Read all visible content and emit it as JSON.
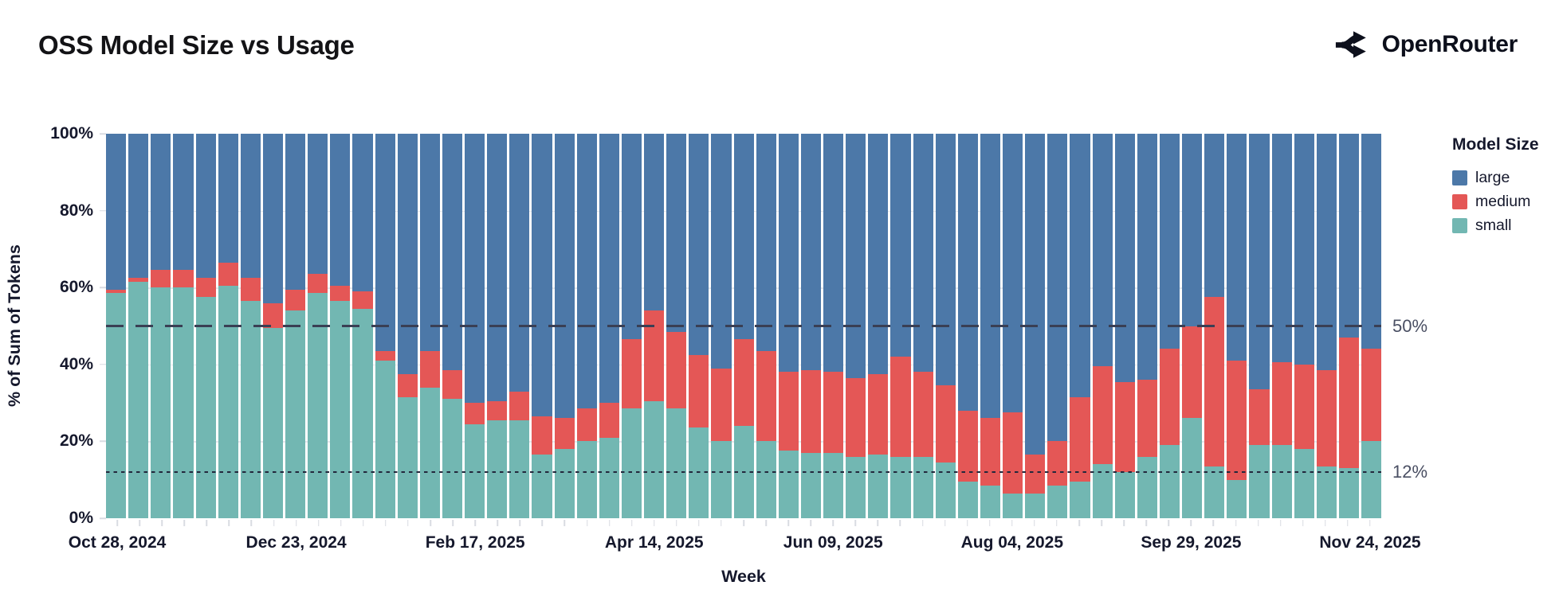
{
  "header": {
    "title": "OSS Model Size vs Usage",
    "brand": "OpenRouter"
  },
  "legend": {
    "title": "Model Size",
    "items": [
      {
        "label": "large",
        "color": "#4c78a8"
      },
      {
        "label": "medium",
        "color": "#e45756"
      },
      {
        "label": "small",
        "color": "#72b7b2"
      }
    ]
  },
  "chart_data": {
    "type": "bar",
    "stacked": true,
    "title": "OSS Model Size vs Usage",
    "xlabel": "Week",
    "ylabel": "% of Sum of Tokens",
    "ylim": [
      0,
      100
    ],
    "grid": "horizontal",
    "grid_y": [
      20,
      40,
      60,
      80
    ],
    "legend_position": "right",
    "y_ticks": [
      {
        "value": 0,
        "label": "0%"
      },
      {
        "value": 20,
        "label": "20%"
      },
      {
        "value": 40,
        "label": "40%"
      },
      {
        "value": 60,
        "label": "60%"
      },
      {
        "value": 80,
        "label": "80%"
      },
      {
        "value": 100,
        "label": "100%"
      }
    ],
    "ref_lines": [
      {
        "value": 50,
        "label": "50%",
        "style": "dashed"
      },
      {
        "value": 12,
        "label": "12%",
        "style": "dotted"
      }
    ],
    "x_major_tick_indices": [
      0,
      8,
      16,
      24,
      32,
      40,
      48,
      56
    ],
    "x": [
      "Oct 28, 2024",
      "Nov 04, 2024",
      "Nov 11, 2024",
      "Nov 18, 2024",
      "Nov 25, 2024",
      "Dec 02, 2024",
      "Dec 09, 2024",
      "Dec 16, 2024",
      "Dec 23, 2024",
      "Dec 30, 2024",
      "Jan 06, 2025",
      "Jan 13, 2025",
      "Jan 20, 2025",
      "Jan 27, 2025",
      "Feb 03, 2025",
      "Feb 10, 2025",
      "Feb 17, 2025",
      "Feb 24, 2025",
      "Mar 03, 2025",
      "Mar 10, 2025",
      "Mar 17, 2025",
      "Mar 24, 2025",
      "Mar 31, 2025",
      "Apr 07, 2025",
      "Apr 14, 2025",
      "Apr 21, 2025",
      "Apr 28, 2025",
      "May 05, 2025",
      "May 12, 2025",
      "May 19, 2025",
      "May 26, 2025",
      "Jun 02, 2025",
      "Jun 09, 2025",
      "Jun 16, 2025",
      "Jun 23, 2025",
      "Jun 30, 2025",
      "Jul 07, 2025",
      "Jul 14, 2025",
      "Jul 21, 2025",
      "Jul 28, 2025",
      "Aug 04, 2025",
      "Aug 11, 2025",
      "Aug 18, 2025",
      "Aug 25, 2025",
      "Sep 01, 2025",
      "Sep 08, 2025",
      "Sep 15, 2025",
      "Sep 22, 2025",
      "Sep 29, 2025",
      "Oct 06, 2025",
      "Oct 13, 2025",
      "Oct 20, 2025",
      "Oct 27, 2025",
      "Nov 03, 2025",
      "Nov 10, 2025",
      "Nov 17, 2025",
      "Nov 24, 2025"
    ],
    "series": [
      {
        "name": "large",
        "color": "#4c78a8",
        "values": [
          40.5,
          37.5,
          35.5,
          35.5,
          37.5,
          33.5,
          37.5,
          44.0,
          40.5,
          36.5,
          39.5,
          41.0,
          56.5,
          62.5,
          56.5,
          61.5,
          70.0,
          69.5,
          67.0,
          73.5,
          74.0,
          71.5,
          70.0,
          53.5,
          46.0,
          51.5,
          57.5,
          61.0,
          53.5,
          56.5,
          62.0,
          61.5,
          62.0,
          63.5,
          62.5,
          58.0,
          62.0,
          65.5,
          72.0,
          74.0,
          72.5,
          83.5,
          80.0,
          68.5,
          60.5,
          64.5,
          64.0,
          56.0,
          50.0,
          42.5,
          59.0,
          66.5,
          59.5,
          60.0,
          61.5,
          53.0,
          56.0
        ]
      },
      {
        "name": "medium",
        "color": "#e45756",
        "values": [
          1.0,
          1.0,
          4.5,
          4.5,
          5.0,
          6.0,
          6.0,
          6.5,
          5.5,
          5.0,
          4.0,
          4.5,
          2.5,
          6.0,
          9.5,
          7.5,
          5.5,
          5.0,
          7.5,
          10.0,
          8.0,
          8.5,
          9.0,
          18.0,
          23.5,
          20.0,
          19.0,
          19.0,
          22.5,
          23.5,
          20.5,
          21.5,
          21.0,
          20.5,
          21.0,
          26.0,
          22.0,
          20.0,
          18.5,
          17.5,
          21.0,
          10.0,
          11.5,
          22.0,
          25.5,
          23.5,
          20.0,
          25.0,
          24.0,
          44.0,
          31.0,
          14.5,
          21.5,
          22.0,
          25.0,
          34.0,
          24.0
        ]
      },
      {
        "name": "small",
        "color": "#72b7b2",
        "values": [
          58.5,
          61.5,
          60.0,
          60.0,
          57.5,
          60.5,
          56.5,
          49.5,
          54.0,
          58.5,
          56.5,
          54.5,
          41.0,
          31.5,
          34.0,
          31.0,
          24.5,
          25.5,
          25.5,
          16.5,
          18.0,
          20.0,
          21.0,
          28.5,
          30.5,
          28.5,
          23.5,
          20.0,
          24.0,
          20.0,
          17.5,
          17.0,
          17.0,
          16.0,
          16.5,
          16.0,
          16.0,
          14.5,
          9.5,
          8.5,
          6.5,
          6.5,
          8.5,
          9.5,
          14.0,
          12.0,
          16.0,
          19.0,
          26.0,
          13.5,
          10.0,
          19.0,
          19.0,
          18.0,
          13.5,
          13.0,
          20.0
        ]
      }
    ]
  }
}
